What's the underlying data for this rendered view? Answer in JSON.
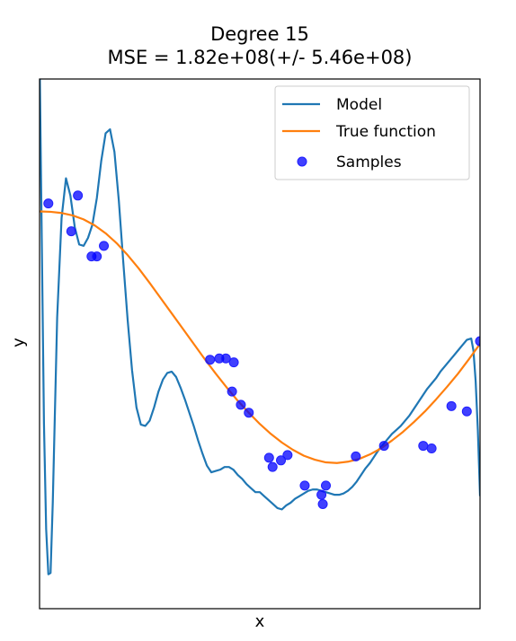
{
  "chart_data": {
    "type": "line",
    "title": "Degree 15",
    "subtitle": "MSE = 1.82e+08(+/- 5.46e+08)",
    "xlabel": "x",
    "ylabel": "y",
    "xlim": [
      0,
      1
    ],
    "ylim": [
      -2,
      2
    ],
    "grid": false,
    "legend_position": "top-right",
    "series": [
      {
        "name": "Model",
        "type": "line",
        "color": "#1f77b4",
        "x": [
          0.0,
          0.005,
          0.01,
          0.015,
          0.02,
          0.025,
          0.03,
          0.035,
          0.04,
          0.05,
          0.06,
          0.07,
          0.08,
          0.09,
          0.1,
          0.11,
          0.12,
          0.13,
          0.14,
          0.15,
          0.16,
          0.17,
          0.18,
          0.19,
          0.2,
          0.21,
          0.22,
          0.23,
          0.24,
          0.25,
          0.26,
          0.27,
          0.28,
          0.29,
          0.3,
          0.31,
          0.32,
          0.33,
          0.34,
          0.35,
          0.36,
          0.37,
          0.38,
          0.39,
          0.4,
          0.41,
          0.42,
          0.43,
          0.44,
          0.45,
          0.46,
          0.47,
          0.48,
          0.49,
          0.5,
          0.51,
          0.52,
          0.53,
          0.54,
          0.55,
          0.56,
          0.57,
          0.58,
          0.59,
          0.6,
          0.61,
          0.62,
          0.63,
          0.64,
          0.65,
          0.66,
          0.67,
          0.68,
          0.69,
          0.7,
          0.71,
          0.72,
          0.73,
          0.74,
          0.75,
          0.76,
          0.77,
          0.78,
          0.79,
          0.8,
          0.81,
          0.82,
          0.83,
          0.84,
          0.85,
          0.86,
          0.87,
          0.88,
          0.89,
          0.9,
          0.91,
          0.92,
          0.93,
          0.94,
          0.95,
          0.96,
          0.97,
          0.98,
          0.985,
          0.99,
          0.995,
          1.0
        ],
        "y": [
          2.2,
          0.8,
          -0.6,
          -1.4,
          -1.74,
          -1.73,
          -1.2,
          -0.5,
          0.2,
          0.95,
          1.25,
          1.12,
          0.88,
          0.75,
          0.74,
          0.8,
          0.9,
          1.1,
          1.38,
          1.59,
          1.62,
          1.45,
          1.08,
          0.62,
          0.18,
          -0.2,
          -0.48,
          -0.61,
          -0.62,
          -0.58,
          -0.48,
          -0.36,
          -0.27,
          -0.22,
          -0.21,
          -0.25,
          -0.33,
          -0.42,
          -0.52,
          -0.62,
          -0.73,
          -0.83,
          -0.92,
          -0.97,
          -0.96,
          -0.95,
          -0.93,
          -0.93,
          -0.95,
          -0.99,
          -1.02,
          -1.06,
          -1.09,
          -1.12,
          -1.12,
          -1.15,
          -1.18,
          -1.21,
          -1.24,
          -1.25,
          -1.22,
          -1.2,
          -1.17,
          -1.15,
          -1.13,
          -1.11,
          -1.1,
          -1.1,
          -1.11,
          -1.12,
          -1.13,
          -1.14,
          -1.14,
          -1.13,
          -1.11,
          -1.08,
          -1.04,
          -0.99,
          -0.94,
          -0.9,
          -0.85,
          -0.8,
          -0.76,
          -0.72,
          -0.68,
          -0.65,
          -0.62,
          -0.58,
          -0.54,
          -0.49,
          -0.44,
          -0.39,
          -0.34,
          -0.3,
          -0.26,
          -0.21,
          -0.17,
          -0.13,
          -0.09,
          -0.05,
          -0.01,
          0.03,
          0.04,
          -0.05,
          -0.28,
          -0.65,
          -1.15
        ]
      },
      {
        "name": "True function",
        "type": "line",
        "color": "#ff7f0e",
        "x": [
          0.0,
          0.025,
          0.05,
          0.075,
          0.1,
          0.125,
          0.15,
          0.175,
          0.2,
          0.225,
          0.25,
          0.275,
          0.3,
          0.325,
          0.35,
          0.375,
          0.4,
          0.425,
          0.45,
          0.475,
          0.5,
          0.525,
          0.55,
          0.575,
          0.6,
          0.625,
          0.65,
          0.675,
          0.7,
          0.725,
          0.75,
          0.775,
          0.8,
          0.825,
          0.85,
          0.875,
          0.9,
          0.925,
          0.95,
          0.975,
          1.0
        ],
        "y": [
          1.0,
          0.997,
          0.988,
          0.97,
          0.94,
          0.895,
          0.835,
          0.76,
          0.67,
          0.57,
          0.46,
          0.345,
          0.23,
          0.115,
          0.0,
          -0.115,
          -0.225,
          -0.33,
          -0.43,
          -0.52,
          -0.605,
          -0.68,
          -0.745,
          -0.8,
          -0.845,
          -0.875,
          -0.895,
          -0.9,
          -0.89,
          -0.87,
          -0.835,
          -0.79,
          -0.73,
          -0.665,
          -0.59,
          -0.51,
          -0.42,
          -0.325,
          -0.225,
          -0.115,
          0.0
        ]
      },
      {
        "name": "Samples",
        "type": "scatter",
        "color": "#0000ff",
        "x": [
          0.02,
          0.072,
          0.087,
          0.118,
          0.13,
          0.146,
          0.387,
          0.408,
          0.423,
          0.437,
          0.441,
          0.457,
          0.475,
          0.521,
          0.529,
          0.548,
          0.563,
          0.602,
          0.64,
          0.643,
          0.65,
          0.718,
          0.782,
          0.871,
          0.89,
          0.935,
          0.97,
          1.0
        ],
        "y": [
          1.06,
          0.85,
          1.12,
          0.66,
          0.66,
          0.74,
          -0.12,
          -0.11,
          -0.11,
          -0.36,
          -0.14,
          -0.46,
          -0.52,
          -0.86,
          -0.93,
          -0.88,
          -0.84,
          -1.07,
          -1.14,
          -1.21,
          -1.07,
          -0.85,
          -0.77,
          -0.77,
          -0.79,
          -0.47,
          -0.51,
          0.02
        ]
      }
    ],
    "legend": {
      "items": [
        "Model",
        "True function",
        "Samples"
      ]
    }
  }
}
